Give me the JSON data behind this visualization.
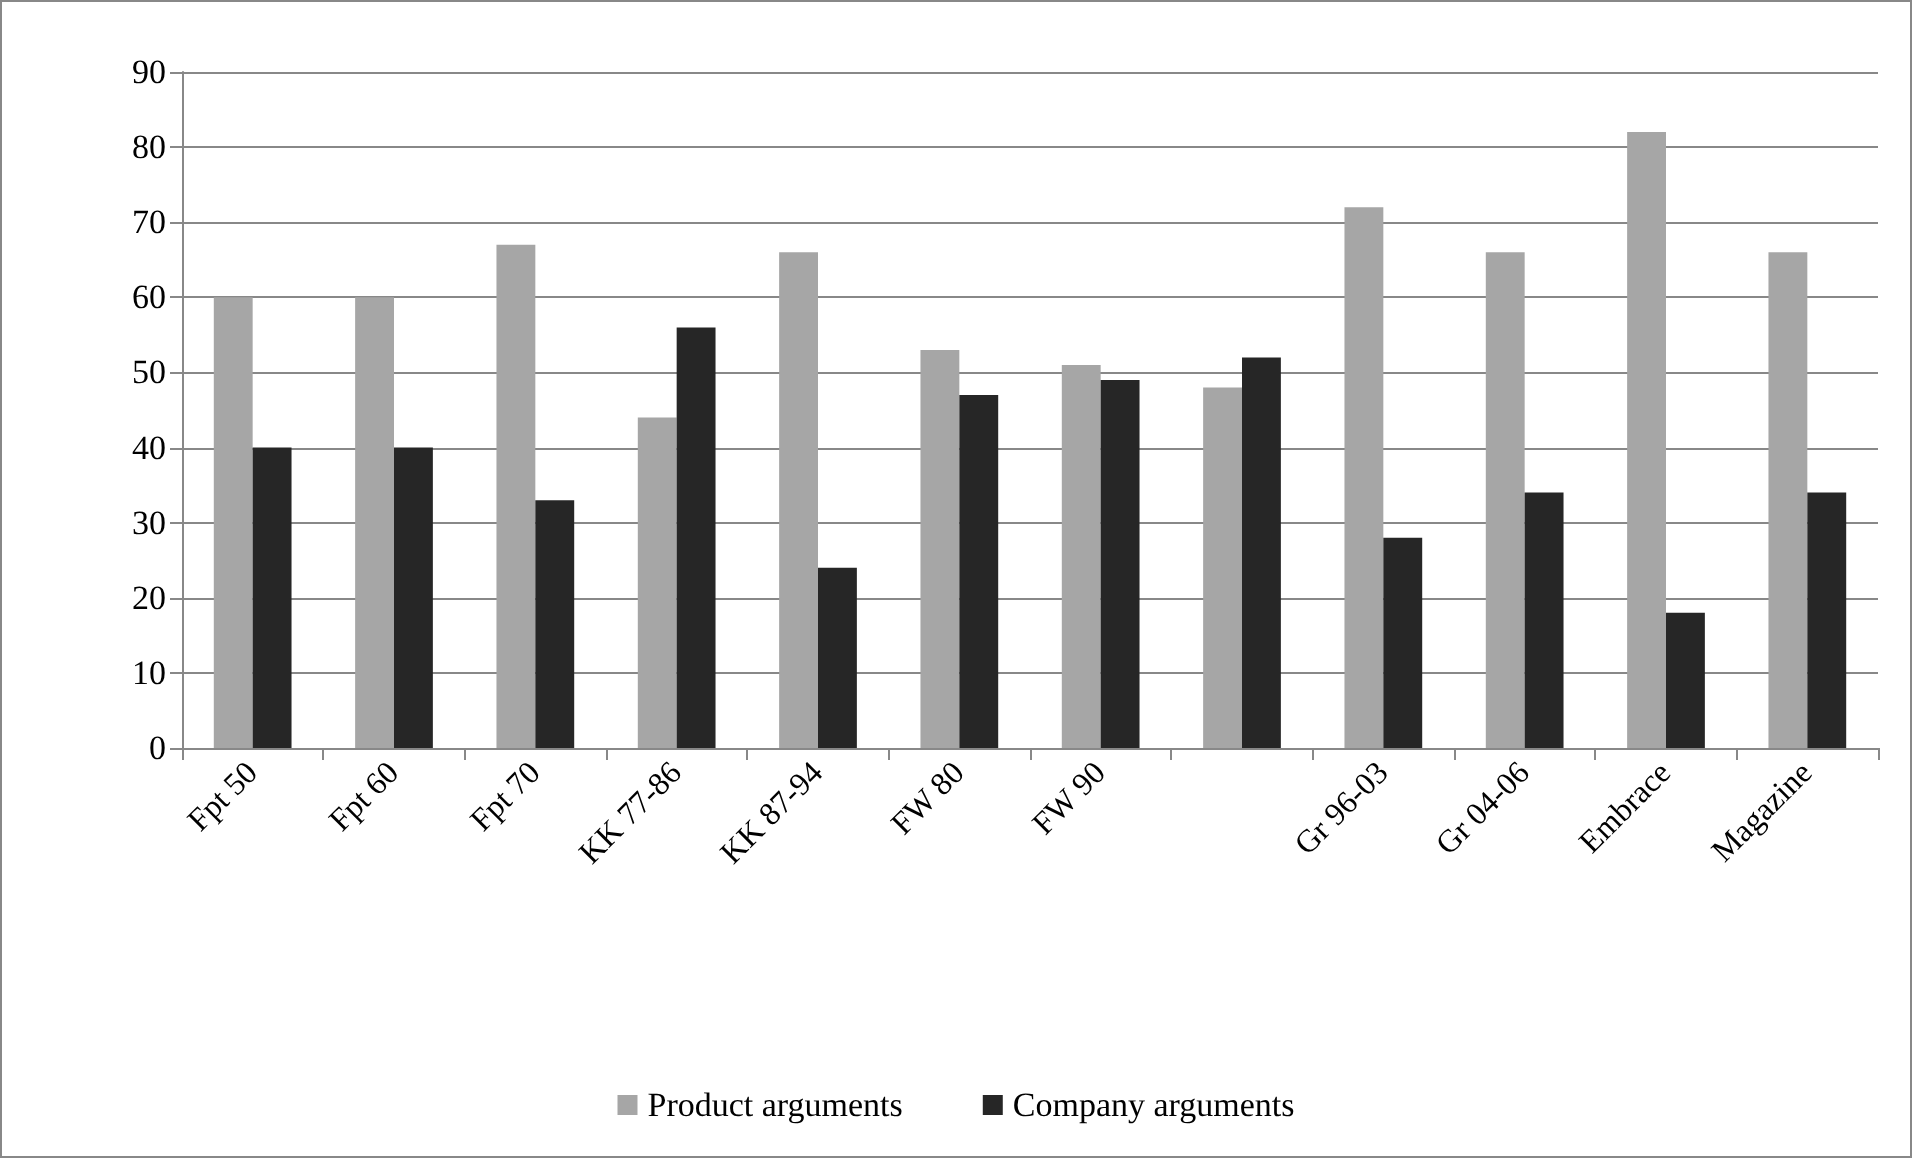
{
  "chart_data": {
    "type": "bar",
    "categories": [
      "Fpt 50",
      "Fpt 60",
      "Fpt 70",
      "KK 77-86",
      "KK 87-94",
      "FW 80",
      "FW 90",
      null,
      "Gr 96-03",
      "Gr 04-06",
      "Embrace",
      "Magazine"
    ],
    "series": [
      {
        "name": "Product arguments",
        "color": "#a6a6a6",
        "values": [
          60,
          60,
          67,
          44,
          66,
          53,
          51,
          48,
          72,
          66,
          82,
          66
        ]
      },
      {
        "name": "Company arguments",
        "color": "#262626",
        "values": [
          40,
          40,
          33,
          56,
          24,
          47,
          49,
          52,
          28,
          34,
          18,
          34
        ]
      }
    ],
    "ylim": [
      0,
      90
    ],
    "yticks": [
      0,
      10,
      20,
      30,
      40,
      50,
      60,
      70,
      80,
      90
    ],
    "grid": "y",
    "legend": "bottom"
  }
}
